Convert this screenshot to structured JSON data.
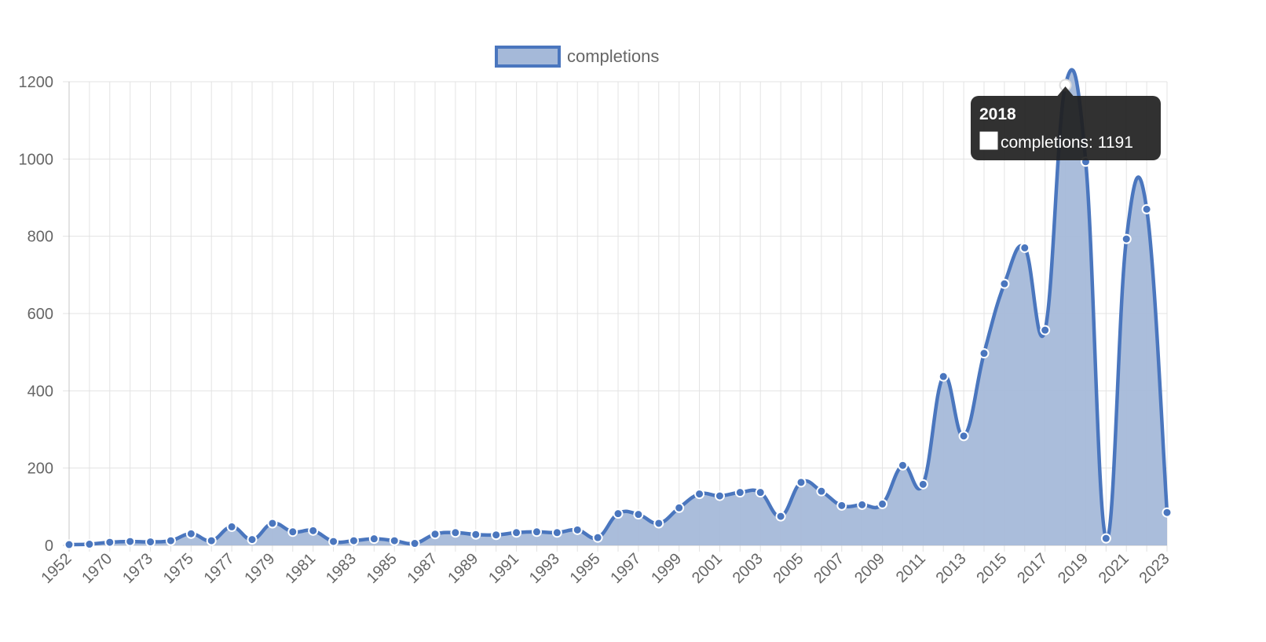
{
  "chart_data": {
    "type": "area",
    "title": "",
    "xlabel": "",
    "ylabel": "",
    "ylim": [
      0,
      1200
    ],
    "yticks": [
      0,
      200,
      400,
      600,
      800,
      1000,
      1200
    ],
    "grid": true,
    "legend_position": "top-center",
    "categories": [
      "1952",
      "1969",
      "1970",
      "1972",
      "1973",
      "1974",
      "1975",
      "1976",
      "1977",
      "1978",
      "1979",
      "1980",
      "1981",
      "1982",
      "1983",
      "1984",
      "1985",
      "1986",
      "1987",
      "1988",
      "1989",
      "1990",
      "1991",
      "1992",
      "1993",
      "1994",
      "1995",
      "1996",
      "1997",
      "1998",
      "1999",
      "2000",
      "2001",
      "2002",
      "2003",
      "2004",
      "2005",
      "2006",
      "2007",
      "2008",
      "2009",
      "2010",
      "2011",
      "2012",
      "2013",
      "2014",
      "2015",
      "2016",
      "2017",
      "2018",
      "2019",
      "2020",
      "2021",
      "2022",
      "2023"
    ],
    "tick_labels": [
      "1952",
      "1970",
      "1973",
      "1975",
      "1977",
      "1979",
      "1981",
      "1983",
      "1985",
      "1987",
      "1989",
      "1991",
      "1993",
      "1995",
      "1997",
      "1999",
      "2001",
      "2003",
      "2005",
      "2007",
      "2009",
      "2011",
      "2013",
      "2015",
      "2017",
      "2019",
      "2021",
      "2023"
    ],
    "series": [
      {
        "name": "completions",
        "values": [
          2,
          3,
          8,
          10,
          9,
          12,
          30,
          12,
          48,
          15,
          57,
          35,
          38,
          10,
          12,
          17,
          12,
          5,
          29,
          33,
          28,
          27,
          33,
          35,
          33,
          40,
          20,
          82,
          80,
          57,
          97,
          133,
          128,
          137,
          137,
          75,
          163,
          140,
          103,
          105,
          107,
          207,
          158,
          437,
          283,
          497,
          677,
          770,
          557,
          1191,
          993,
          18,
          793,
          870,
          85
        ]
      }
    ],
    "tooltip": {
      "title": "2018",
      "label": "completions: 1191"
    }
  },
  "colors": {
    "line": "#4a76be",
    "fill": "#a5b9d9",
    "grid": "#e3e3e3",
    "axis": "#c7c7c7",
    "text": "#666666",
    "tooltip_bg": "#1f1f1f"
  }
}
